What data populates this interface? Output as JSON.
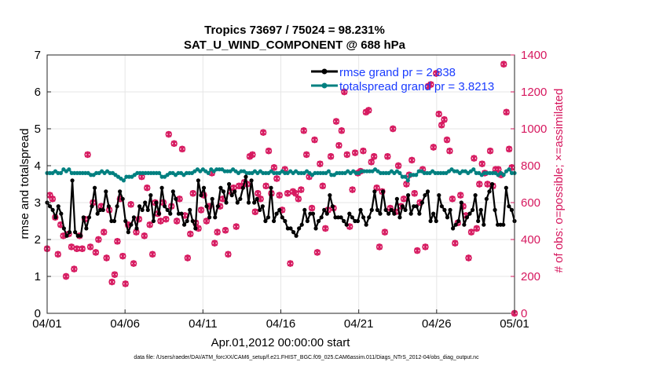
{
  "chart_data": {
    "type": "line",
    "title_line1": "Tropics 73697 / 75024 = 98.231%",
    "title_line2": "SAT_U_WIND_COMPONENT @ 688 hPa",
    "xlabel": "Apr.01,2012 00:00:00 start",
    "ylabel": "rmse and totalspread",
    "y2label": "# of obs: o=possible; ×=assimilated",
    "footer": "data file: /Users/raeder/DAI/ATM_forcXX/CAM6_setup/f.e21.FHIST_BGC.f09_025.CAM6assim.011/Diags_NTrS_2012-04/obs_diag_output.nc",
    "xlim": [
      0,
      30
    ],
    "ylim": [
      0,
      7
    ],
    "y2lim": [
      0,
      1400
    ],
    "x_ticks": [
      0,
      5,
      10,
      15,
      20,
      25,
      30
    ],
    "x_tick_labels": [
      "04/01",
      "04/06",
      "04/11",
      "04/16",
      "04/21",
      "04/26",
      "05/01"
    ],
    "y_ticks": [
      "0",
      "1",
      "2",
      "3",
      "4",
      "5",
      "6",
      "7"
    ],
    "y2_ticks": [
      "0",
      "200",
      "400",
      "600",
      "800",
      "1000",
      "1200",
      "1400"
    ],
    "grid": true,
    "legend_location": "top-right",
    "series": [
      {
        "name": "rmse grand pr = 2.838",
        "color": "#000000",
        "marker": "circle",
        "axis": "left",
        "values": [
          3.0,
          2.9,
          2.8,
          2.6,
          2.9,
          2.7,
          2.3,
          2.1,
          2.2,
          3.6,
          2.2,
          2.1,
          2.1,
          2.6,
          2.3,
          2.6,
          2.9,
          3.4,
          2.7,
          2.8,
          2.8,
          3.3,
          2.9,
          2.5,
          2.5,
          2.9,
          3.3,
          3.1,
          2.5,
          2.2,
          2.4,
          2.6,
          2.3,
          2.9,
          2.8,
          3.0,
          2.8,
          3.2,
          2.5,
          3.0,
          2.7,
          3.4,
          2.9,
          2.8,
          2.7,
          3.3,
          3.1,
          2.7,
          2.7,
          2.4,
          2.5,
          2.8,
          2.5,
          2.3,
          3.6,
          3.2,
          3.4,
          2.9,
          2.6,
          3.1,
          2.6,
          2.9,
          3.4,
          3.3,
          3.0,
          3.5,
          3.2,
          3.3,
          3.0,
          3.1,
          3.4,
          3.7,
          3.0,
          3.6,
          3.0,
          3.1,
          2.8,
          2.9,
          2.5,
          2.6,
          3.4,
          2.5,
          2.7,
          2.8,
          2.6,
          2.5,
          2.3,
          2.3,
          2.2,
          2.1,
          2.3,
          2.4,
          2.8,
          2.5,
          2.7,
          2.7,
          2.3,
          2.5,
          2.6,
          2.8,
          2.7,
          3.2,
          2.9,
          2.6,
          2.6,
          2.6,
          2.5,
          2.4,
          2.7,
          2.6,
          2.5,
          2.5,
          2.8,
          2.6,
          2.4,
          2.6,
          2.8,
          3.3,
          2.8,
          2.7,
          3.3,
          2.8,
          2.7,
          2.8,
          2.7,
          3.1,
          2.6,
          2.9,
          2.8,
          3.2,
          2.7,
          2.9,
          2.9,
          2.7,
          3.0,
          3.2,
          3.3,
          2.5,
          2.7,
          2.5,
          3.2,
          2.9,
          2.8,
          2.6,
          2.8,
          2.3,
          2.4,
          2.5,
          3.0,
          2.4,
          2.6,
          2.7,
          2.8,
          3.2,
          2.5,
          2.8,
          2.4,
          3.1,
          3.3,
          3.5,
          2.8,
          2.4,
          2.4,
          2.4,
          3.4,
          2.9,
          2.8,
          2.5
        ]
      },
      {
        "name": "totalspread grand pr = 3.8213",
        "color": "#008080",
        "marker": "circle",
        "axis": "left",
        "values": [
          3.8,
          3.8,
          3.8,
          3.85,
          3.8,
          3.8,
          3.9,
          3.85,
          3.9,
          3.8,
          3.8,
          3.8,
          3.8,
          3.8,
          3.8,
          3.8,
          3.75,
          3.75,
          3.8,
          3.8,
          3.85,
          3.8,
          3.85,
          3.8,
          3.8,
          3.75,
          3.7,
          3.65,
          3.6,
          3.7,
          3.7,
          3.7,
          3.75,
          3.8,
          3.8,
          3.8,
          3.8,
          3.8,
          3.8,
          3.8,
          3.8,
          3.8,
          3.7,
          3.7,
          3.75,
          3.8,
          3.8,
          3.75,
          3.8,
          3.8,
          3.75,
          3.8,
          3.8,
          3.8,
          3.85,
          3.9,
          3.85,
          3.9,
          3.85,
          3.8,
          3.9,
          3.85,
          3.9,
          3.9,
          3.9,
          3.85,
          3.85,
          3.85,
          3.9,
          3.85,
          3.8,
          3.85,
          3.85,
          3.8,
          3.8,
          3.8,
          3.85,
          3.8,
          3.85,
          3.8,
          3.8,
          3.8,
          3.85,
          3.8,
          3.8,
          3.8,
          3.85,
          3.8,
          3.8,
          3.85,
          3.8,
          3.85,
          3.8,
          3.8,
          3.8,
          3.85,
          3.8,
          3.75,
          3.8,
          3.8,
          3.8,
          3.8,
          3.8,
          3.85,
          3.75,
          3.75,
          3.8,
          3.8,
          3.8,
          3.8,
          3.85,
          3.8,
          3.85,
          3.8,
          3.8,
          3.85,
          3.85,
          3.85,
          3.85,
          3.85,
          3.9,
          3.85,
          3.8,
          3.8,
          3.8,
          3.8,
          3.85,
          3.8,
          3.85,
          3.8,
          3.7,
          3.7,
          3.6,
          3.75,
          3.75,
          3.75,
          3.85,
          3.85,
          3.8,
          3.8,
          3.8,
          3.85,
          3.8,
          3.8,
          3.8,
          3.8,
          3.8,
          3.85,
          3.9,
          3.85,
          3.85,
          3.8,
          3.85,
          3.85,
          3.8,
          3.85,
          3.9,
          3.8,
          3.8,
          3.75,
          3.8,
          3.8,
          3.8,
          3.8,
          3.8,
          3.75,
          3.8,
          3.75,
          3.85,
          3.9,
          3.8,
          3.8
        ]
      },
      {
        "name": "obs possible",
        "color": "#d6175e",
        "marker": "o",
        "axis": "right",
        "values": [
          350,
          640,
          620,
          520,
          320,
          480,
          420,
          200,
          430,
          360,
          240,
          350,
          420,
          350,
          510,
          860,
          360,
          600,
          330,
          400,
          580,
          440,
          300,
          560,
          170,
          210,
          390,
          620,
          310,
          160,
          480,
          590,
          270,
          440,
          510,
          740,
          420,
          680,
          480,
          320,
          600,
          540,
          500,
          600,
          510,
          970,
          580,
          920,
          500,
          620,
          890,
          530,
          300,
          430,
          650,
          490,
          460,
          560,
          640,
          500,
          580,
          760,
          380,
          440,
          580,
          620,
          450,
          320,
          660,
          680,
          470,
          690,
          690,
          710,
          700,
          850,
          860,
          550,
          650,
          620,
          980,
          690,
          880,
          650,
          790,
          730,
          640,
          560,
          780,
          650,
          270,
          660,
          650,
          620,
          670,
          990,
          860,
          740,
          570,
          940,
          330,
          810,
          690,
          460,
          560,
          850,
          570,
          1040,
          910,
          990,
          1200,
          860,
          470,
          670,
          870,
          760,
          770,
          880,
          1090,
          1100,
          820,
          850,
          680,
          360,
          660,
          440,
          850,
          570,
          1000,
          550,
          800,
          580,
          620,
          700,
          750,
          830,
          650,
          340,
          600,
          780,
          360,
          1230,
          1240,
          900,
          1300,
          1080,
          1020,
          1050,
          940,
          880,
          620,
          380,
          490,
          640,
          580,
          530,
          300,
          440,
          840,
          460,
          700,
          810,
          760,
          700,
          880,
          690,
          780,
          780,
          750,
          1350,
          1090,
          890,
          790,
          0
        ]
      }
    ]
  }
}
